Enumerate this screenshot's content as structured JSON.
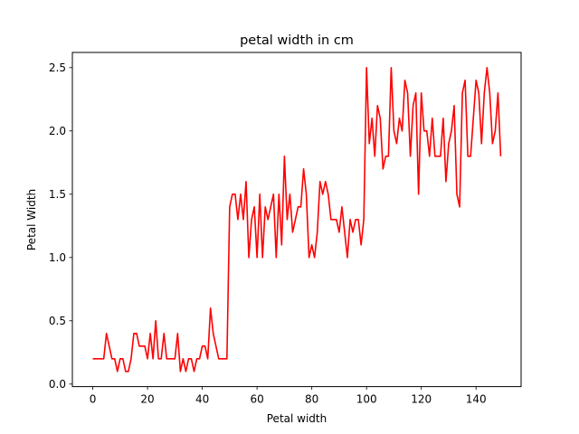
{
  "chart_data": {
    "type": "line",
    "title": "petal width in cm",
    "xlabel": "Petal width",
    "ylabel": "Petal Width",
    "xlim": [
      -7.45,
      156.45
    ],
    "ylim": [
      -0.02,
      2.62
    ],
    "xticks": [
      0,
      20,
      40,
      60,
      80,
      100,
      120,
      140
    ],
    "yticks": [
      0.0,
      0.5,
      1.0,
      1.5,
      2.0,
      2.5
    ],
    "xtick_labels": [
      "0",
      "20",
      "40",
      "60",
      "80",
      "100",
      "120",
      "140"
    ],
    "ytick_labels": [
      "0.0",
      "0.5",
      "1.0",
      "1.5",
      "2.0",
      "2.5"
    ],
    "grid": false,
    "legend": "none",
    "series": [
      {
        "color": "#ff0000",
        "x_start": 0,
        "values": [
          0.2,
          0.2,
          0.2,
          0.2,
          0.2,
          0.4,
          0.3,
          0.2,
          0.2,
          0.1,
          0.2,
          0.2,
          0.1,
          0.1,
          0.2,
          0.4,
          0.4,
          0.3,
          0.3,
          0.3,
          0.2,
          0.4,
          0.2,
          0.5,
          0.2,
          0.2,
          0.4,
          0.2,
          0.2,
          0.2,
          0.2,
          0.4,
          0.1,
          0.2,
          0.1,
          0.2,
          0.2,
          0.1,
          0.2,
          0.2,
          0.3,
          0.3,
          0.2,
          0.6,
          0.4,
          0.3,
          0.2,
          0.2,
          0.2,
          0.2,
          1.4,
          1.5,
          1.5,
          1.3,
          1.5,
          1.3,
          1.6,
          1.0,
          1.3,
          1.4,
          1.0,
          1.5,
          1.0,
          1.4,
          1.3,
          1.4,
          1.5,
          1.0,
          1.5,
          1.1,
          1.8,
          1.3,
          1.5,
          1.2,
          1.3,
          1.4,
          1.4,
          1.7,
          1.5,
          1.0,
          1.1,
          1.0,
          1.2,
          1.6,
          1.5,
          1.6,
          1.5,
          1.3,
          1.3,
          1.3,
          1.2,
          1.4,
          1.2,
          1.0,
          1.3,
          1.2,
          1.3,
          1.3,
          1.1,
          1.3,
          2.5,
          1.9,
          2.1,
          1.8,
          2.2,
          2.1,
          1.7,
          1.8,
          1.8,
          2.5,
          2.0,
          1.9,
          2.1,
          2.0,
          2.4,
          2.3,
          1.8,
          2.2,
          2.3,
          1.5,
          2.3,
          2.0,
          2.0,
          1.8,
          2.1,
          1.8,
          1.8,
          1.8,
          2.1,
          1.6,
          1.9,
          2.0,
          2.2,
          1.5,
          1.4,
          2.3,
          2.4,
          1.8,
          1.8,
          2.1,
          2.4,
          2.3,
          1.9,
          2.3,
          2.5,
          2.3,
          1.9,
          2.0,
          2.3,
          1.8
        ]
      }
    ]
  }
}
